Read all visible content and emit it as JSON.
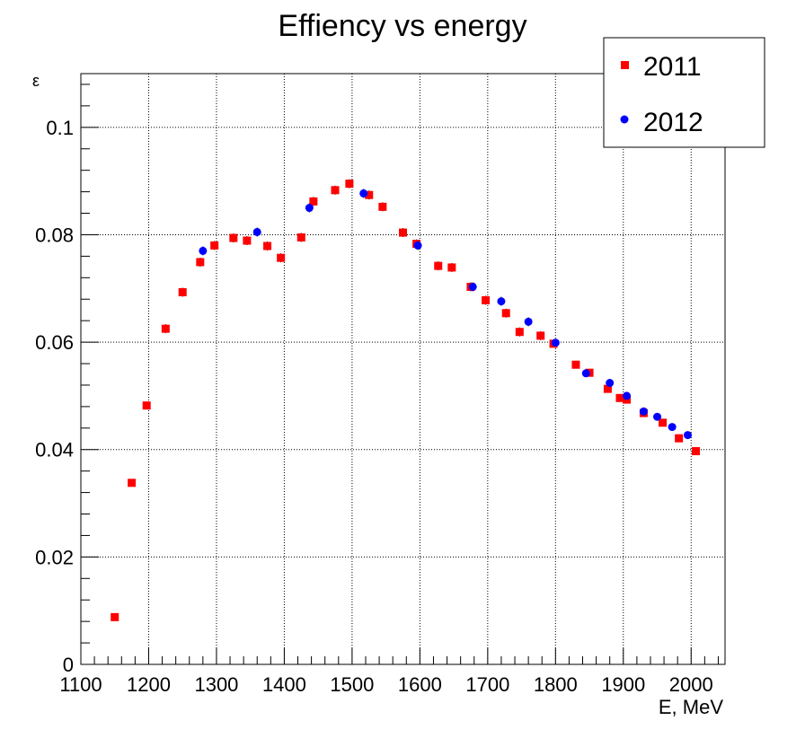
{
  "chart_data": {
    "type": "scatter",
    "title": "Effiency vs energy",
    "xlabel": "E, MeV",
    "ylabel": "ε",
    "xlim": [
      1100,
      2050
    ],
    "ylim": [
      0,
      0.11
    ],
    "xticks": [
      "1100",
      "1200",
      "1300",
      "1400",
      "1500",
      "1600",
      "1700",
      "1800",
      "1900",
      "2000"
    ],
    "yticks": [
      "0",
      "0.02",
      "0.04",
      "0.06",
      "0.08",
      "0.1"
    ],
    "grid": true,
    "legend": "top-right",
    "series": [
      {
        "name": "2011",
        "color": "#ff0000",
        "marker": "square",
        "points": [
          {
            "x": 1150,
            "y": 0.0088
          },
          {
            "x": 1175,
            "y": 0.0338
          },
          {
            "x": 1197,
            "y": 0.0482
          },
          {
            "x": 1225,
            "y": 0.0625
          },
          {
            "x": 1250,
            "y": 0.0693
          },
          {
            "x": 1276,
            "y": 0.0749
          },
          {
            "x": 1297,
            "y": 0.078
          },
          {
            "x": 1325,
            "y": 0.0794
          },
          {
            "x": 1345,
            "y": 0.0789
          },
          {
            "x": 1375,
            "y": 0.0779
          },
          {
            "x": 1395,
            "y": 0.0757
          },
          {
            "x": 1425,
            "y": 0.0795
          },
          {
            "x": 1443,
            "y": 0.0862
          },
          {
            "x": 1475,
            "y": 0.0883
          },
          {
            "x": 1496,
            "y": 0.0895
          },
          {
            "x": 1525,
            "y": 0.0874
          },
          {
            "x": 1545,
            "y": 0.0852
          },
          {
            "x": 1575,
            "y": 0.0804
          },
          {
            "x": 1595,
            "y": 0.0783
          },
          {
            "x": 1627,
            "y": 0.0742
          },
          {
            "x": 1647,
            "y": 0.0739
          },
          {
            "x": 1675,
            "y": 0.0703
          },
          {
            "x": 1697,
            "y": 0.0678
          },
          {
            "x": 1727,
            "y": 0.0654
          },
          {
            "x": 1747,
            "y": 0.0619
          },
          {
            "x": 1778,
            "y": 0.0612
          },
          {
            "x": 1797,
            "y": 0.0597
          },
          {
            "x": 1830,
            "y": 0.0558
          },
          {
            "x": 1850,
            "y": 0.0543
          },
          {
            "x": 1877,
            "y": 0.0513
          },
          {
            "x": 1895,
            "y": 0.0496
          },
          {
            "x": 1905,
            "y": 0.0493
          },
          {
            "x": 1930,
            "y": 0.0468
          },
          {
            "x": 1958,
            "y": 0.045
          },
          {
            "x": 1982,
            "y": 0.0421
          },
          {
            "x": 2007,
            "y": 0.0397
          }
        ]
      },
      {
        "name": "2012",
        "color": "#0000ff",
        "marker": "circle",
        "points": [
          {
            "x": 1280,
            "y": 0.077
          },
          {
            "x": 1360,
            "y": 0.0805
          },
          {
            "x": 1437,
            "y": 0.085
          },
          {
            "x": 1517,
            "y": 0.0877
          },
          {
            "x": 1597,
            "y": 0.078
          },
          {
            "x": 1678,
            "y": 0.0703
          },
          {
            "x": 1720,
            "y": 0.0676
          },
          {
            "x": 1760,
            "y": 0.0638
          },
          {
            "x": 1800,
            "y": 0.0599
          },
          {
            "x": 1845,
            "y": 0.0542
          },
          {
            "x": 1880,
            "y": 0.0524
          },
          {
            "x": 1905,
            "y": 0.05
          },
          {
            "x": 1930,
            "y": 0.0471
          },
          {
            "x": 1950,
            "y": 0.0461
          },
          {
            "x": 1972,
            "y": 0.0442
          },
          {
            "x": 1995,
            "y": 0.0427
          }
        ]
      }
    ]
  }
}
